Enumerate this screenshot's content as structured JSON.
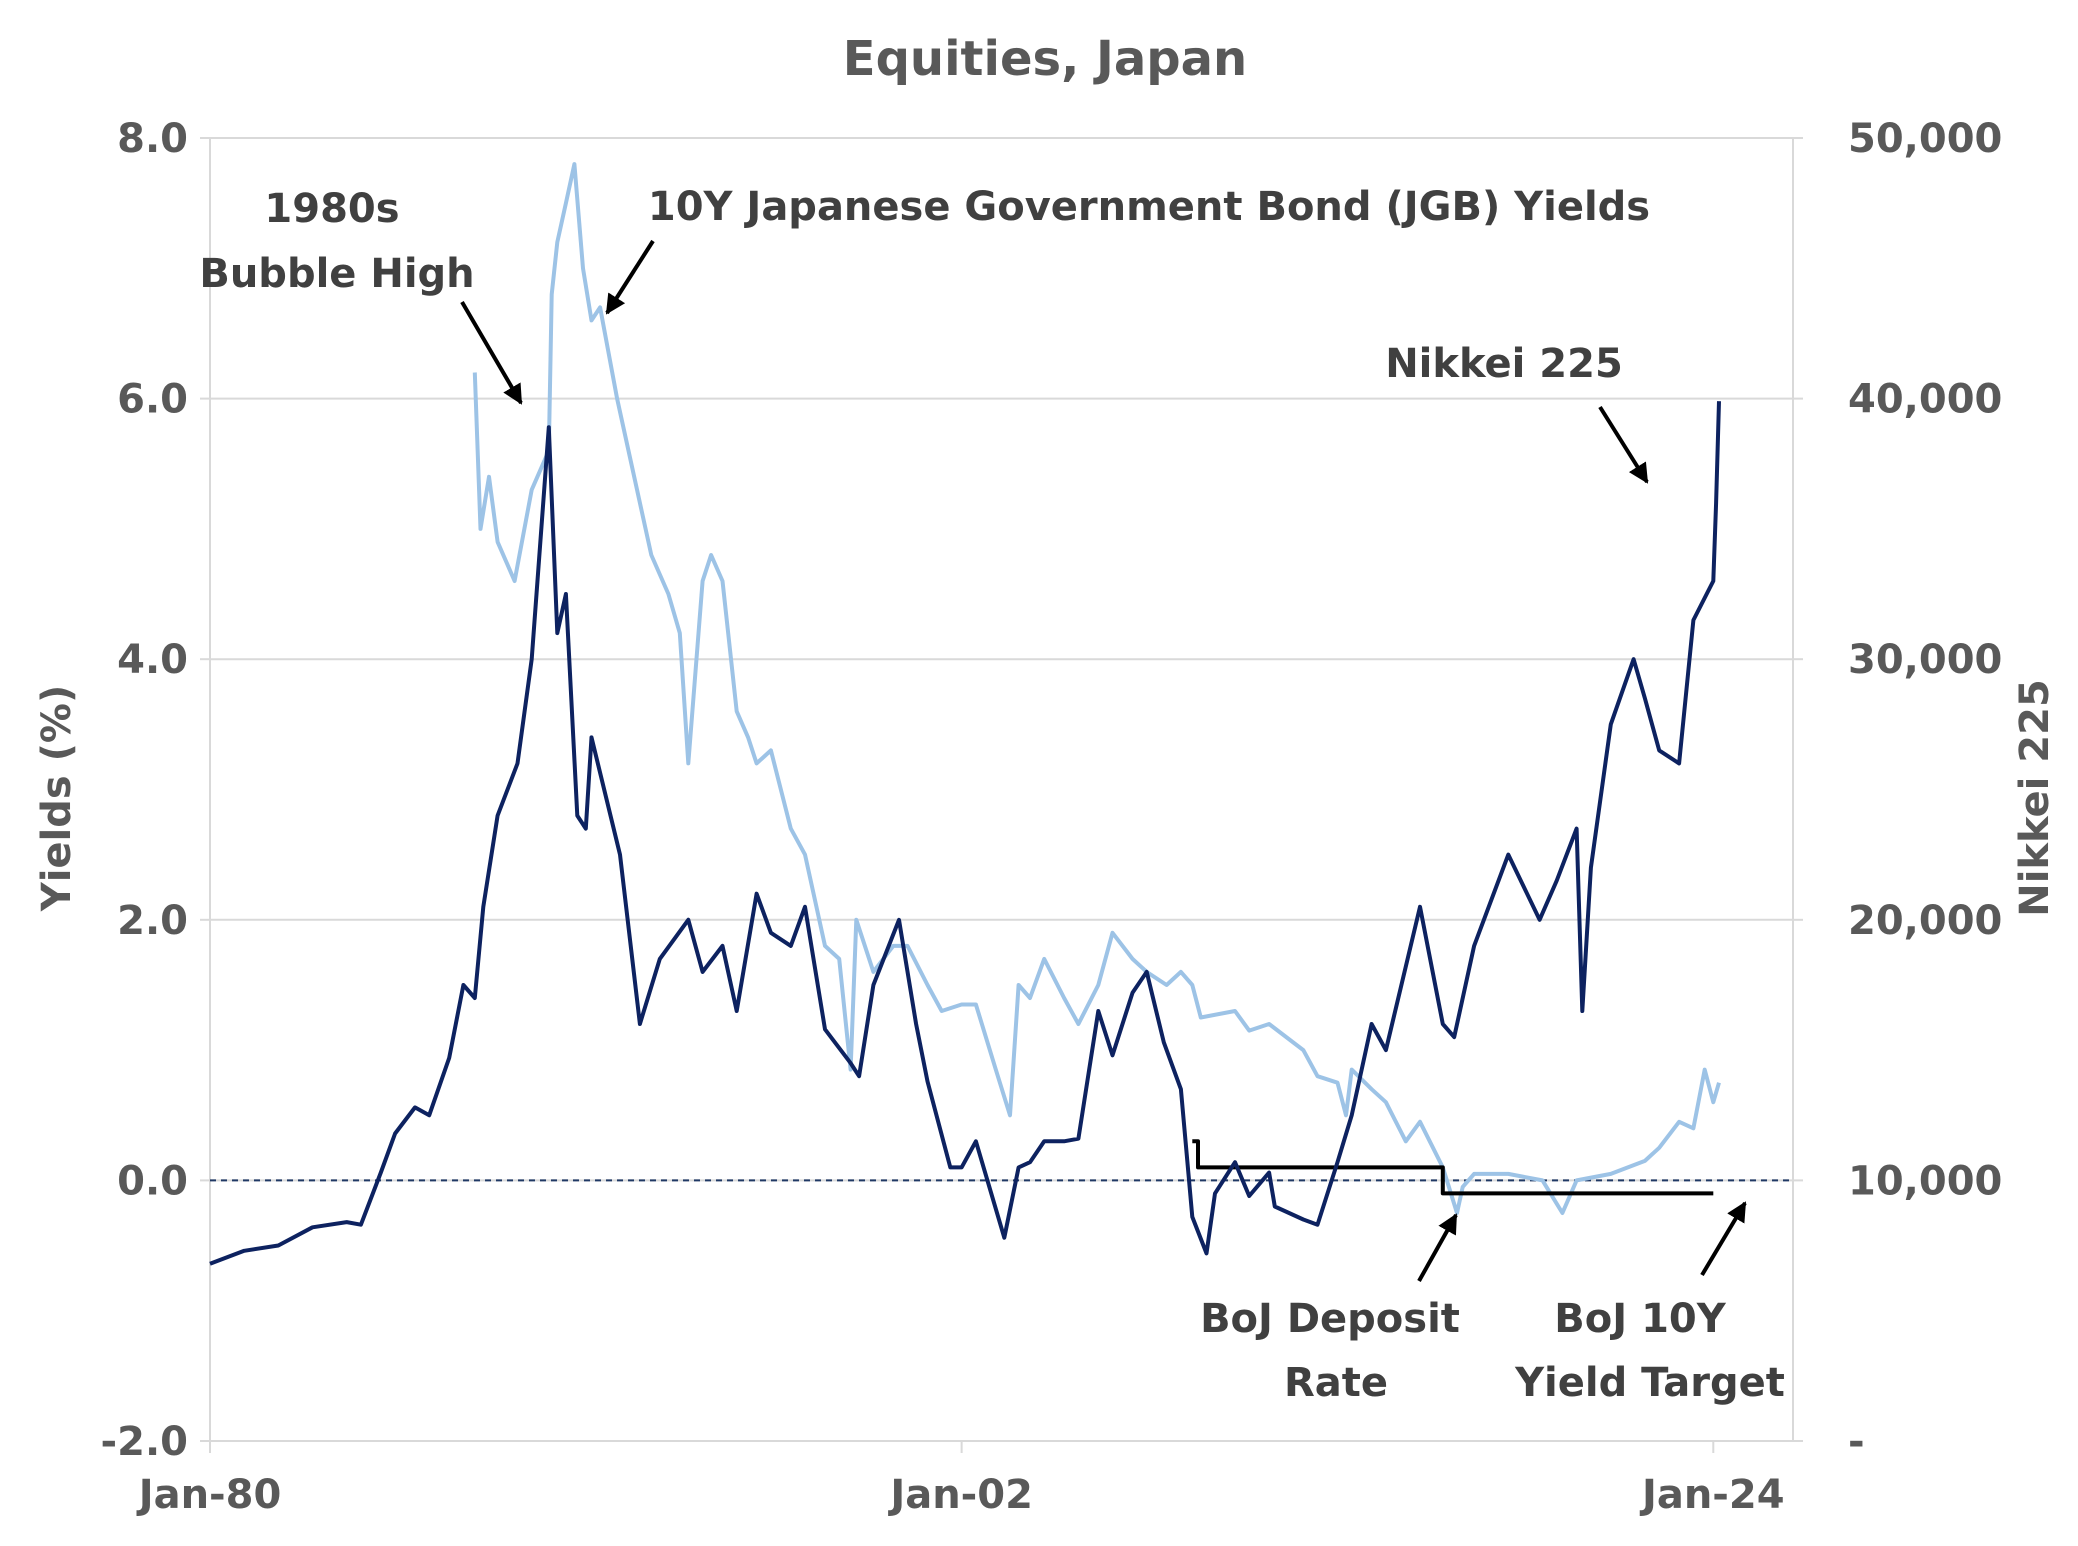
{
  "chart_data": {
    "type": "line",
    "title": "Equities, Japan",
    "x_tick_labels": [
      "Jan-80",
      "Jan-02",
      "Jan-24"
    ],
    "x_range": [
      "1980-01",
      "2026-05"
    ],
    "left_axis": {
      "label": "Yields  (%)",
      "range": [
        -2.0,
        8.0
      ],
      "tick_labels": [
        "-2.0",
        "0.0",
        "2.0",
        "4.0",
        "6.0",
        "8.0"
      ]
    },
    "right_axis": {
      "label": "Nikkei  225",
      "range": [
        0,
        50000
      ],
      "tick_labels": [
        "-",
        "10,000",
        "20,000",
        "30,000",
        "40,000",
        "50,000"
      ]
    },
    "grid": true,
    "colors": {
      "nikkei": "#0d2260",
      "jgb": "#9dc3e6",
      "deposit": "#000000",
      "target": "#1f3864",
      "grid": "#d9d9d9"
    },
    "annotations": {
      "bubble_line1": "1980s",
      "bubble_line2": "Bubble High",
      "jgb": "10Y Japanese Government Bond (JGB) Yields",
      "nikkei": "Nikkei  225",
      "deposit_line1": "BoJ Deposit",
      "deposit_line2": "Rate",
      "target_line1": "BoJ 10Y",
      "target_line2": "Yield Target"
    },
    "series": [
      {
        "name": "Nikkei  225",
        "axis": "right",
        "x": [
          "1980-01",
          "1981-01",
          "1982-01",
          "1983-01",
          "1984-01",
          "1984-06",
          "1985-01",
          "1985-06",
          "1986-01",
          "1986-06",
          "1987-01",
          "1987-06",
          "1987-10",
          "1988-01",
          "1988-06",
          "1989-01",
          "1989-06",
          "1989-12",
          "1990-03",
          "1990-06",
          "1990-10",
          "1991-01",
          "1991-03",
          "1992-01",
          "1992-08",
          "1993-03",
          "1994-01",
          "1994-06",
          "1995-01",
          "1995-06",
          "1996-01",
          "1996-06",
          "1997-01",
          "1997-06",
          "1998-01",
          "1998-10",
          "1999-01",
          "1999-06",
          "2000-03",
          "2000-09",
          "2001-01",
          "2001-09",
          "2002-01",
          "2002-06",
          "2003-04",
          "2003-09",
          "2004-01",
          "2004-06",
          "2005-01",
          "2005-06",
          "2006-01",
          "2006-06",
          "2007-01",
          "2007-06",
          "2007-12",
          "2008-06",
          "2008-10",
          "2009-03",
          "2009-06",
          "2010-01",
          "2010-06",
          "2011-01",
          "2011-03",
          "2012-01",
          "2012-06",
          "2013-01",
          "2013-06",
          "2014-01",
          "2014-06",
          "2015-06",
          "2016-02",
          "2016-06",
          "2017-01",
          "2018-01",
          "2018-12",
          "2019-06",
          "2020-01",
          "2020-03",
          "2020-06",
          "2021-01",
          "2021-09",
          "2022-01",
          "2022-06",
          "2023-01",
          "2023-06",
          "2024-01",
          "2024-02",
          "2024-03"
        ],
        "y": [
          6800,
          7300,
          7500,
          8200,
          8400,
          8300,
          10300,
          11800,
          12800,
          12500,
          14700,
          17500,
          17000,
          20500,
          24000,
          26000,
          30000,
          38900,
          31000,
          32500,
          24000,
          23500,
          27000,
          22500,
          16000,
          18500,
          20000,
          18000,
          19000,
          16500,
          21000,
          19500,
          19000,
          20500,
          15800,
          14500,
          14000,
          17500,
          20000,
          16000,
          13800,
          10500,
          10500,
          11500,
          7800,
          10500,
          10700,
          11500,
          11500,
          11600,
          16500,
          14800,
          17200,
          18000,
          15300,
          13500,
          8600,
          7200,
          9500,
          10700,
          9400,
          10300,
          9000,
          8500,
          8300,
          10700,
          12500,
          16000,
          15000,
          20500,
          16000,
          15500,
          19000,
          22500,
          20000,
          21500,
          23500,
          16500,
          22000,
          27500,
          30000,
          28500,
          26500,
          26000,
          31500,
          33000,
          36000,
          39900
        ]
      },
      {
        "name": "10Y Japanese Government Bond (JGB) Yields",
        "axis": "left",
        "x": [
          "1987-10",
          "1987-12",
          "1988-03",
          "1988-06",
          "1988-12",
          "1989-06",
          "1989-12",
          "1990-01",
          "1990-03",
          "1990-06",
          "1990-09",
          "1990-12",
          "1991-03",
          "1991-06",
          "1991-12",
          "1992-06",
          "1992-12",
          "1993-06",
          "1993-10",
          "1994-01",
          "1994-06",
          "1994-09",
          "1995-01",
          "1995-06",
          "1995-10",
          "1996-01",
          "1996-06",
          "1997-01",
          "1997-06",
          "1998-01",
          "1998-06",
          "1998-10",
          "1998-12",
          "1999-06",
          "2000-01",
          "2000-06",
          "2001-01",
          "2001-06",
          "2002-01",
          "2002-06",
          "2003-01",
          "2003-06",
          "2003-09",
          "2004-01",
          "2004-06",
          "2005-01",
          "2005-06",
          "2006-01",
          "2006-06",
          "2007-01",
          "2007-06",
          "2008-01",
          "2008-06",
          "2008-10",
          "2009-01",
          "2010-01",
          "2010-06",
          "2011-01",
          "2012-01",
          "2012-06",
          "2013-01",
          "2013-04",
          "2013-06",
          "2014-01",
          "2014-06",
          "2015-01",
          "2015-06",
          "2016-02",
          "2016-07",
          "2016-09",
          "2017-01",
          "2018-01",
          "2019-01",
          "2019-08",
          "2020-01",
          "2021-01",
          "2022-01",
          "2022-06",
          "2023-01",
          "2023-06",
          "2023-10",
          "2024-01",
          "2024-03"
        ],
        "y": [
          6.2,
          5.0,
          5.4,
          4.9,
          4.6,
          5.3,
          5.6,
          6.8,
          7.2,
          7.5,
          7.8,
          7.0,
          6.6,
          6.7,
          6.0,
          5.4,
          4.8,
          4.5,
          4.2,
          3.2,
          4.6,
          4.8,
          4.6,
          3.6,
          3.4,
          3.2,
          3.3,
          2.7,
          2.5,
          1.8,
          1.7,
          0.85,
          2.0,
          1.6,
          1.8,
          1.8,
          1.5,
          1.3,
          1.35,
          1.35,
          0.85,
          0.5,
          1.5,
          1.4,
          1.7,
          1.4,
          1.2,
          1.5,
          1.9,
          1.7,
          1.6,
          1.5,
          1.6,
          1.5,
          1.25,
          1.3,
          1.15,
          1.2,
          1.0,
          0.8,
          0.75,
          0.5,
          0.85,
          0.7,
          0.6,
          0.3,
          0.45,
          0.1,
          -0.25,
          -0.05,
          0.05,
          0.05,
          0.0,
          -0.25,
          0.0,
          0.05,
          0.15,
          0.25,
          0.45,
          0.4,
          0.85,
          0.6,
          0.75
        ]
      },
      {
        "name": "BoJ Deposit Rate",
        "axis": "left",
        "x": [
          "2008-10",
          "2008-12",
          "2016-02",
          "2024-01"
        ],
        "y": [
          0.3,
          0.1,
          -0.1,
          -0.1
        ]
      },
      {
        "name": "BoJ 10Y Yield Target",
        "axis": "left",
        "style": "dashed",
        "x": [
          "1980-01",
          "2026-05"
        ],
        "y": [
          0.0,
          0.0
        ]
      }
    ]
  }
}
